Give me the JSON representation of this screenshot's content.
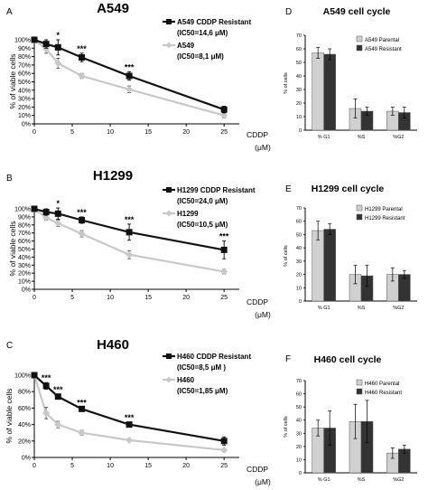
{
  "chart_data": [
    {
      "panel": "A",
      "type": "line",
      "title": "A549",
      "xlabel": "CDDP",
      "xunit": "(μM)",
      "ylabel": "% of viable cells",
      "x": [
        0,
        1.56,
        3.125,
        6.25,
        12.5,
        25
      ],
      "xticks": [
        0,
        5,
        10,
        15,
        20,
        25
      ],
      "xlim": [
        0,
        27
      ],
      "yticks": [
        "0%",
        "10%",
        "20%",
        "30%",
        "40%",
        "50%",
        "60%",
        "70%",
        "80%",
        "90%",
        "100%"
      ],
      "ylim": [
        0,
        100
      ],
      "series": [
        {
          "name": "A549 CDDP Resistant",
          "ic50": "(IC50=14,6 μM)",
          "color": "#111111",
          "marker": "square",
          "values": [
            100,
            95,
            91,
            79,
            57,
            17
          ],
          "errors": [
            2,
            5,
            9,
            5,
            5,
            4
          ]
        },
        {
          "name": "A549",
          "ic50": "(IC50=8,1 μM)",
          "color": "#c8c8c8",
          "marker": "diamond",
          "values": [
            100,
            89,
            72,
            57,
            41,
            10
          ],
          "errors": [
            2,
            5,
            6,
            3,
            4,
            3
          ]
        }
      ],
      "annotations": [
        {
          "x": 3.125,
          "label": "*"
        },
        {
          "x": 6.25,
          "label": "***"
        },
        {
          "x": 12.5,
          "label": "***"
        }
      ]
    },
    {
      "panel": "B",
      "type": "line",
      "title": "H1299",
      "xlabel": "CDDP",
      "xunit": "(μM)",
      "ylabel": "% of viable cells",
      "x": [
        0,
        1.56,
        3.125,
        6.25,
        12.5,
        25
      ],
      "xticks": [
        0,
        5,
        10,
        15,
        20,
        25
      ],
      "xlim": [
        0,
        27
      ],
      "yticks": [
        "0%",
        "10%",
        "20%",
        "30%",
        "40%",
        "50%",
        "60%",
        "70%",
        "80%",
        "90%",
        "100%"
      ],
      "ylim": [
        0,
        100
      ],
      "series": [
        {
          "name": "H1299 CDDP Resistant",
          "ic50": "(IC50=24,0 μM)",
          "color": "#111111",
          "marker": "square",
          "values": [
            100,
            96,
            94,
            86,
            71,
            49
          ],
          "errors": [
            2,
            4,
            7,
            4,
            10,
            11
          ]
        },
        {
          "name": "H1299",
          "ic50": "(IC50=10,5 μM)",
          "color": "#c8c8c8",
          "marker": "diamond",
          "values": [
            100,
            89,
            82,
            69,
            43,
            22
          ],
          "errors": [
            2,
            3,
            4,
            4,
            5,
            3
          ]
        }
      ],
      "annotations": [
        {
          "x": 3.125,
          "label": "*"
        },
        {
          "x": 6.25,
          "label": "***"
        },
        {
          "x": 12.5,
          "label": "***"
        },
        {
          "x": 25,
          "label": "***"
        }
      ]
    },
    {
      "panel": "C",
      "type": "line",
      "title": "H460",
      "xlabel": "CDDP",
      "xunit": "(μM)",
      "ylabel": "% of viable cells",
      "x": [
        0,
        1.56,
        3.125,
        6.25,
        12.5,
        25
      ],
      "xticks": [
        0,
        5,
        10,
        15,
        20,
        25
      ],
      "xlim": [
        0,
        27
      ],
      "yticks": [
        "0%",
        "20%",
        "40%",
        "60%",
        "80%",
        "100%"
      ],
      "ylim": [
        0,
        100
      ],
      "series": [
        {
          "name": "H460 CDDP Resistant",
          "ic50": "(IC50=8,5 μM )",
          "color": "#111111",
          "marker": "square",
          "values": [
            100,
            87,
            74,
            59,
            40,
            20
          ],
          "errors": [
            2,
            4,
            3,
            2,
            3,
            5
          ]
        },
        {
          "name": "H460",
          "ic50": "(IC50=1,85 μM)",
          "color": "#c8c8c8",
          "marker": "diamond",
          "values": [
            100,
            54,
            40,
            30,
            21,
            9
          ],
          "errors": [
            2,
            7,
            4,
            3,
            2,
            2
          ]
        }
      ],
      "annotations": [
        {
          "x": 1.56,
          "label": "***"
        },
        {
          "x": 3.125,
          "label": "***"
        },
        {
          "x": 6.25,
          "label": "***"
        },
        {
          "x": 12.5,
          "label": "***"
        }
      ]
    },
    {
      "panel": "D",
      "type": "bar",
      "title": "A549 cell cycle",
      "ylabel": "% of cells",
      "categories": [
        "% G1",
        "%S",
        "%G2"
      ],
      "yticks": [
        0,
        10,
        20,
        30,
        40,
        50,
        60,
        70
      ],
      "ylim": [
        0,
        70
      ],
      "series": [
        {
          "name": "A549 Parental",
          "color": "#d0d0d0",
          "values": [
            57,
            16,
            14
          ],
          "errors": [
            4,
            7,
            3
          ]
        },
        {
          "name": "A549 Resistant",
          "color": "#333333",
          "values": [
            56,
            14,
            13
          ],
          "errors": [
            4,
            3,
            4
          ]
        }
      ]
    },
    {
      "panel": "E",
      "type": "bar",
      "title": "H1299 cell cycle",
      "ylabel": "% of cells",
      "categories": [
        "% G1",
        "%S",
        "%G2"
      ],
      "yticks": [
        0,
        10,
        20,
        30,
        40,
        50,
        60,
        70
      ],
      "ylim": [
        0,
        70
      ],
      "series": [
        {
          "name": "H1299 Parental",
          "color": "#d0d0d0",
          "values": [
            53,
            20,
            20
          ],
          "errors": [
            7,
            7,
            5
          ]
        },
        {
          "name": "H1299 Resistant",
          "color": "#333333",
          "values": [
            54,
            19,
            20
          ],
          "errors": [
            4,
            8,
            3
          ]
        }
      ]
    },
    {
      "panel": "F",
      "type": "bar",
      "title": "H460 cell cycle",
      "ylabel": "% of cells",
      "categories": [
        "% G1",
        "%S",
        "%G2"
      ],
      "yticks": [
        0,
        10,
        20,
        30,
        40,
        50,
        60,
        70
      ],
      "ylim": [
        0,
        70
      ],
      "series": [
        {
          "name": "H460 Parental",
          "color": "#d0d0d0",
          "values": [
            34,
            39,
            15
          ],
          "errors": [
            6,
            13,
            4
          ]
        },
        {
          "name": "H460 Resistant",
          "color": "#333333",
          "values": [
            34,
            39,
            18
          ],
          "errors": [
            13,
            16,
            3
          ]
        }
      ]
    }
  ]
}
